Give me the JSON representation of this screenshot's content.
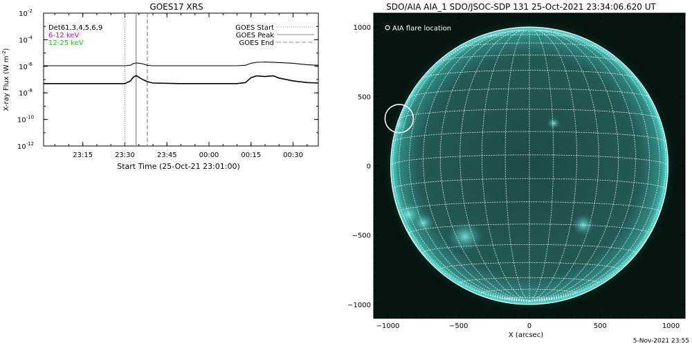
{
  "footer_date": "5-Nov-2021 23:55",
  "chart_data": [
    {
      "type": "line",
      "title": "GOES17 XRS",
      "xlabel": "Start Time (25-Oct-21 23:01:00)",
      "ylabel": "X-ray Flux (W m",
      "ylabel_exp": "-2",
      "ylabel_close": ")",
      "y_scale": "log",
      "ylim": [
        1e-12,
        0.01
      ],
      "xlim": [
        "23:01:00",
        "00:39:00"
      ],
      "x_ticks": [
        "23:15",
        "23:30",
        "23:45",
        "00:00",
        "00:15",
        "00:30"
      ],
      "y_ticks": [
        {
          "base": "10",
          "exp": "-2"
        },
        {
          "base": "10",
          "exp": "-4"
        },
        {
          "base": "10",
          "exp": "-6"
        },
        {
          "base": "10",
          "exp": "-8"
        },
        {
          "base": "10",
          "exp": "-10"
        },
        {
          "base": "10",
          "exp": "-12"
        }
      ],
      "legend_left": [
        {
          "text": "Det61,3,4,5,6,9",
          "color": "#000000"
        },
        {
          "text": "6-12 keV",
          "color": "#cc00cc"
        },
        {
          "text": "12-25 keV",
          "color": "#00dd00"
        }
      ],
      "legend_right": [
        {
          "label": "GOES Start",
          "style": "dotted"
        },
        {
          "label": "GOES Peak",
          "style": "solid"
        },
        {
          "label": "GOES End",
          "style": "dashed"
        }
      ],
      "event_lines": {
        "start": "23:30:00",
        "peak": "23:34:00",
        "end": "23:38:00"
      },
      "series": [
        {
          "channel": "long",
          "x": [
            "23:01",
            "23:20",
            "23:30",
            "23:32",
            "23:33",
            "23:34",
            "23:36",
            "23:38",
            "23:40",
            "23:50",
            "00:00",
            "00:10",
            "00:13",
            "00:15",
            "00:17",
            "00:20",
            "00:25",
            "00:30",
            "00:35",
            "00:39"
          ],
          "y": [
            1.1e-06,
            1.1e-06,
            1.1e-06,
            1.2e-06,
            1.6e-06,
            1.8e-06,
            1.6e-06,
            1.2e-06,
            1.1e-06,
            1.1e-06,
            1.1e-06,
            1.1e-06,
            1.2e-06,
            1.7e-06,
            2e-06,
            2.1e-06,
            1.9e-06,
            1.7e-06,
            1.3e-06,
            1.2e-06
          ]
        },
        {
          "channel": "short",
          "x": [
            "23:01",
            "23:20",
            "23:30",
            "23:32",
            "23:33",
            "23:34",
            "23:36",
            "23:38",
            "23:40",
            "23:50",
            "00:00",
            "00:10",
            "00:13",
            "00:15",
            "00:17",
            "00:20",
            "00:23",
            "00:25",
            "00:30",
            "00:35",
            "00:39"
          ],
          "y": [
            5e-08,
            5e-08,
            5e-08,
            8e-08,
            1.5e-07,
            2e-07,
            1.1e-07,
            7e-08,
            5.5e-08,
            5e-08,
            5e-08,
            5e-08,
            6e-08,
            1.4e-07,
            1.9e-07,
            1.7e-07,
            1.9e-07,
            1.3e-07,
            8e-08,
            6e-08,
            5.5e-08
          ]
        }
      ]
    },
    {
      "type": "image",
      "title": "SDO/AIA AIA_1 SDO/JSOC-SDP 131 25-Oct-2021 23:34:06.620 UT",
      "xlabel": "X (arcsec)",
      "ylabel": "",
      "xlim": [
        -1100,
        1100
      ],
      "ylim": [
        -1100,
        1100
      ],
      "x_ticks": [
        "-1000",
        "-500",
        "0",
        "500",
        "1000"
      ],
      "y_ticks": [
        "1000",
        "500",
        "0",
        "-500",
        "-1000"
      ],
      "legend": "AIA flare location",
      "solar_radius_arcsec": 980,
      "flare_location": [
        -920,
        340
      ],
      "flare_circle_radius_arcsec": 100,
      "colors": {
        "background": "#06150f",
        "disk": "#1f4d4a",
        "limb_glow": "#3fd2c8",
        "grid": "#ffffff"
      }
    }
  ]
}
